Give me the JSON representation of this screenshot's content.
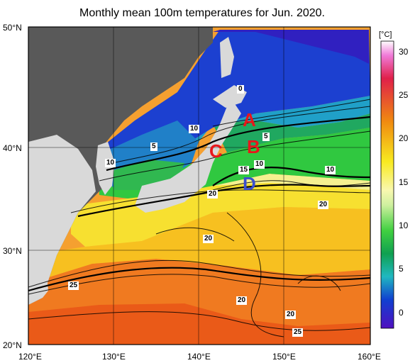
{
  "title": "Monthly mean 100m temperatures for Jun. 2020.",
  "lat_labels": [
    "50°N",
    "40°N",
    "30°N",
    "20°N"
  ],
  "lon_labels": [
    "120°E",
    "130°E",
    "140°E",
    "150°E",
    "160°E"
  ],
  "colorbar": {
    "unit": "[°C]",
    "ticks": [
      "30",
      "25",
      "20",
      "15",
      "10",
      "5",
      "0"
    ]
  },
  "points": [
    {
      "label": "A",
      "color": "#e8161b"
    },
    {
      "label": "B",
      "color": "#e8161b"
    },
    {
      "label": "C",
      "color": "#e8161b"
    },
    {
      "label": "D",
      "color": "#3a4fd0"
    }
  ],
  "contour_labels": [
    "0",
    "5",
    "5",
    "10",
    "10",
    "10",
    "10",
    "15",
    "20",
    "20",
    "20",
    "20",
    "20",
    "25",
    "25"
  ]
}
